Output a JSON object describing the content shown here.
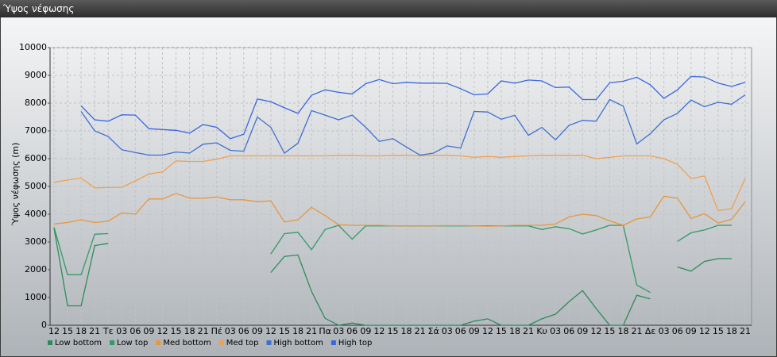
{
  "title": "Ύψος νέφωσης",
  "chart_data": {
    "type": "line",
    "y_label": "Ύψος νέφωσης (m)",
    "categories": [
      "12",
      "15",
      "18",
      "21",
      "Τε",
      "03",
      "06",
      "09",
      "12",
      "15",
      "18",
      "21",
      "Πέ",
      "03",
      "06",
      "09",
      "12",
      "15",
      "18",
      "21",
      "Πα",
      "03",
      "06",
      "09",
      "12",
      "15",
      "18",
      "21",
      "Σά",
      "03",
      "06",
      "09",
      "12",
      "15",
      "18",
      "21",
      "Κυ",
      "03",
      "06",
      "09",
      "12",
      "15",
      "18",
      "21",
      "Δε",
      "03",
      "06",
      "09",
      "12",
      "15",
      "18",
      "21"
    ],
    "ylim": [
      0,
      10000
    ],
    "yticks": [
      0,
      1000,
      2000,
      3000,
      4000,
      5000,
      6000,
      7000,
      8000,
      9000,
      10000
    ],
    "grid": true,
    "series": [
      {
        "name": "Low bottom",
        "color": "#2e8b57",
        "values": [
          3500,
          700,
          700,
          2870,
          2950,
          null,
          null,
          null,
          null,
          null,
          null,
          null,
          null,
          null,
          null,
          null,
          1900,
          2480,
          2530,
          1220,
          250,
          0,
          80,
          0,
          0,
          0,
          0,
          0,
          0,
          0,
          0,
          150,
          230,
          0,
          0,
          0,
          230,
          400,
          850,
          1250,
          600,
          0,
          0,
          1080,
          950,
          null,
          2100,
          1950,
          2300,
          2400,
          2400,
          null
        ]
      },
      {
        "name": "Low top",
        "color": "#339966",
        "values": [
          3530,
          1820,
          1820,
          3280,
          3300,
          null,
          null,
          null,
          null,
          null,
          null,
          null,
          null,
          null,
          null,
          null,
          2570,
          3300,
          3350,
          2720,
          3450,
          3600,
          3100,
          3580,
          3580,
          3580,
          3580,
          3580,
          3580,
          3580,
          3580,
          3580,
          3580,
          3580,
          3580,
          3580,
          3450,
          3550,
          3480,
          3290,
          3430,
          3600,
          3600,
          1450,
          1180,
          null,
          3020,
          3330,
          3430,
          3600,
          3600,
          null
        ]
      },
      {
        "name": "Med bottom",
        "color": "#e8963c",
        "values": [
          3650,
          3700,
          3800,
          3700,
          3750,
          4050,
          4000,
          4550,
          4550,
          4750,
          4580,
          4570,
          4620,
          4520,
          4520,
          4450,
          4480,
          3720,
          3800,
          4250,
          3950,
          3620,
          3600,
          3600,
          3600,
          3580,
          3580,
          3580,
          3580,
          3590,
          3590,
          3580,
          3570,
          3580,
          3600,
          3600,
          3600,
          3650,
          3900,
          4000,
          3950,
          3760,
          3600,
          3830,
          3900,
          4650,
          4580,
          3850,
          4020,
          3680,
          3820,
          4450
        ]
      },
      {
        "name": "Med top",
        "color": "#f0a050",
        "values": [
          5150,
          5230,
          5300,
          4950,
          4960,
          4970,
          5200,
          5450,
          5520,
          5920,
          5900,
          5900,
          5980,
          6100,
          6100,
          6100,
          6100,
          6100,
          6100,
          6100,
          6100,
          6120,
          6120,
          6100,
          6100,
          6120,
          6120,
          6100,
          6120,
          6120,
          6100,
          6050,
          6080,
          6050,
          6080,
          6100,
          6120,
          6120,
          6120,
          6120,
          6000,
          6050,
          6100,
          6100,
          6100,
          6000,
          5800,
          5280,
          5380,
          4130,
          4200,
          5300
        ]
      },
      {
        "name": "High bottom",
        "color": "#3f6fd0",
        "values": [
          null,
          null,
          7700,
          7000,
          6800,
          6320,
          6220,
          6130,
          6130,
          6240,
          6200,
          6520,
          6570,
          6300,
          6270,
          7500,
          7130,
          6200,
          6560,
          7730,
          7570,
          7400,
          7570,
          7130,
          6620,
          6720,
          6420,
          6130,
          6200,
          6460,
          6380,
          7700,
          7680,
          7420,
          7560,
          6840,
          7130,
          6680,
          7200,
          7380,
          7350,
          8130,
          7890,
          6530,
          6900,
          7400,
          7630,
          8110,
          7870,
          8030,
          7960,
          8300
        ]
      },
      {
        "name": "High top",
        "color": "#3a66e0",
        "values": [
          null,
          null,
          7900,
          7400,
          7350,
          7580,
          7570,
          7080,
          7050,
          7020,
          6920,
          7230,
          7130,
          6720,
          6880,
          8150,
          8050,
          7830,
          7630,
          8280,
          8480,
          8390,
          8330,
          8700,
          8850,
          8700,
          8750,
          8720,
          8720,
          8710,
          8520,
          8300,
          8330,
          8800,
          8720,
          8830,
          8800,
          8560,
          8580,
          8130,
          8130,
          8730,
          8790,
          8930,
          8660,
          8170,
          8480,
          8960,
          8940,
          8720,
          8600,
          8750
        ]
      }
    ]
  }
}
